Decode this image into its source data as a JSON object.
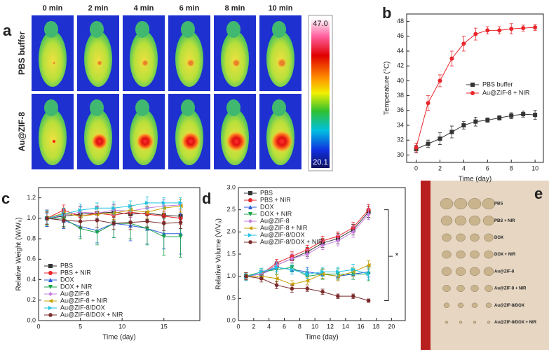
{
  "panel_a": {
    "label": "a",
    "columns": [
      "0 min",
      "2 min",
      "4 min",
      "6 min",
      "8 min",
      "10 min"
    ],
    "rows": [
      "PBS buffer",
      "Au@ZIF-8"
    ],
    "colorbar_max": {
      "value": 47,
      "label": "47.0"
    },
    "colorbar_min": 20.1
  },
  "panel_e": {
    "label": "e",
    "groups": [
      "PBS",
      "PBS + NIR",
      "DOX",
      "DOX + NIR",
      "Au@ZIF-8",
      "Au@ZIF-8 + NIR",
      "Au@ZIF-8/DOX",
      "Au@ZIF-8/DOX + NIR"
    ]
  },
  "chart_data": [
    {
      "type": "line",
      "panel_label": "b",
      "xlabel": "Time (day)",
      "ylabel": "Temperature (°C)",
      "x": [
        0,
        1,
        2,
        3,
        4,
        5,
        6,
        7,
        8,
        9,
        10
      ],
      "xlim": [
        -0.8,
        10.7
      ],
      "xticks": [
        0,
        2,
        4,
        6,
        8,
        10
      ],
      "ylim": [
        29,
        49
      ],
      "yticks": [
        30,
        32,
        34,
        36,
        38,
        40,
        42,
        44,
        46,
        48
      ],
      "legend": "center right",
      "series": [
        {
          "name": "PBS buffer",
          "color": "#333333",
          "marker": "square",
          "values": [
            30.8,
            31.5,
            32.2,
            33.1,
            34.0,
            34.5,
            34.7,
            35.0,
            35.3,
            35.5,
            35.4
          ],
          "errors": [
            0.5,
            0.5,
            0.8,
            0.8,
            0.5,
            0.6,
            0.3,
            0.3,
            0.4,
            0.4,
            0.6
          ]
        },
        {
          "name": "Au@ZIF-8 + NIR",
          "color": "#e8262b",
          "marker": "circle",
          "values": [
            31.0,
            37.0,
            40.0,
            43.0,
            45.0,
            46.3,
            46.8,
            46.8,
            47.0,
            47.1,
            47.2
          ],
          "errors": [
            0.6,
            1.0,
            0.8,
            1.0,
            1.0,
            0.8,
            0.5,
            0.5,
            0.7,
            0.4,
            0.4
          ]
        }
      ]
    },
    {
      "type": "line",
      "panel_label": "c",
      "xlabel": "Time (day)",
      "ylabel": "Relative Weight (W/W₀)",
      "x": [
        1,
        3,
        5,
        7,
        9,
        11,
        13,
        15,
        17
      ],
      "xlim": [
        0,
        19.3
      ],
      "xticks": [
        0,
        5,
        10,
        15
      ],
      "ylim": [
        0,
        1.3
      ],
      "yticks": [
        {
          "value": 0,
          "label": "0.0"
        },
        0.2,
        0.4,
        0.6,
        0.8,
        {
          "value": 1,
          "label": "1.0"
        },
        1.2
      ],
      "legend": "lower left",
      "series": [
        {
          "name": "PBS",
          "color": "#333333",
          "marker": "square",
          "values": [
            1.0,
            1.02,
            1.04,
            1.05,
            1.06,
            1.04,
            1.05,
            1.03,
            1.02
          ],
          "errors": [
            0.08,
            0.06,
            0.07,
            0.06,
            0.08,
            0.07,
            0.06,
            0.07,
            0.06
          ]
        },
        {
          "name": "PBS + NIR",
          "color": "#e8262b",
          "marker": "circle",
          "values": [
            1.0,
            1.08,
            1.02,
            1.05,
            1.03,
            1.06,
            1.04,
            1.02,
            1.0
          ],
          "errors": [
            0.06,
            0.05,
            0.06,
            0.07,
            0.06,
            0.05,
            0.06,
            0.05,
            0.06
          ]
        },
        {
          "name": "DOX",
          "color": "#2a5bd7",
          "marker": "triangle",
          "values": [
            1.0,
            0.98,
            0.92,
            0.88,
            0.95,
            0.93,
            0.9,
            0.85,
            0.85
          ],
          "errors": [
            0.08,
            0.08,
            0.1,
            0.12,
            0.14,
            0.15,
            0.15,
            0.15,
            0.2
          ]
        },
        {
          "name": "DOX + NIR",
          "color": "#1aa34a",
          "marker": "triangle-down",
          "values": [
            1.0,
            1.0,
            0.9,
            0.86,
            0.95,
            0.95,
            0.9,
            0.82,
            0.82
          ],
          "errors": [
            0.07,
            0.08,
            0.1,
            0.12,
            0.14,
            0.15,
            0.16,
            0.18,
            0.2
          ]
        },
        {
          "name": "Au@ZIF-8",
          "color": "#c77fe0",
          "marker": "diamond",
          "values": [
            1.0,
            1.03,
            1.06,
            1.05,
            1.08,
            1.07,
            1.1,
            1.12,
            1.13
          ],
          "errors": [
            0.05,
            0.05,
            0.06,
            0.06,
            0.05,
            0.06,
            0.05,
            0.06,
            0.05
          ]
        },
        {
          "name": "Au@ZIF-8 + NIR",
          "color": "#c8a000",
          "marker": "left",
          "values": [
            1.0,
            1.05,
            1.02,
            1.04,
            1.05,
            1.08,
            1.06,
            1.1,
            1.12
          ],
          "errors": [
            0.06,
            0.05,
            0.06,
            0.05,
            0.06,
            0.05,
            0.06,
            0.05,
            0.06
          ]
        },
        {
          "name": "Au@ZIF-8/DOX",
          "color": "#25c2e0",
          "marker": "right",
          "values": [
            1.0,
            1.04,
            1.08,
            1.1,
            1.1,
            1.12,
            1.15,
            1.15,
            1.15
          ],
          "errors": [
            0.05,
            0.06,
            0.06,
            0.05,
            0.06,
            0.05,
            0.06,
            0.05,
            0.05
          ]
        },
        {
          "name": "Au@ZIF-8/DOX + NIR",
          "color": "#7a2a2a",
          "marker": "hexagon",
          "values": [
            1.0,
            0.98,
            0.97,
            0.98,
            0.95,
            0.96,
            0.97,
            0.95,
            0.96
          ],
          "errors": [
            0.06,
            0.07,
            0.06,
            0.07,
            0.06,
            0.07,
            0.06,
            0.07,
            0.06
          ]
        }
      ]
    },
    {
      "type": "line",
      "panel_label": "d",
      "xlabel": "Time (day)",
      "ylabel": "Relative Volume (V/V₀)",
      "annotation": "*",
      "x": [
        1,
        3,
        5,
        7,
        9,
        11,
        13,
        15,
        17
      ],
      "xlim": [
        0,
        21.8
      ],
      "xticks": [
        0,
        2,
        4,
        6,
        8,
        10,
        12,
        14,
        16,
        18,
        20
      ],
      "ylim": [
        0,
        3
      ],
      "yticks": [
        {
          "value": 0,
          "label": "0.0"
        },
        0.5,
        {
          "value": 1,
          "label": "1.0"
        },
        1.5,
        {
          "value": 2,
          "label": "2.0"
        },
        2.5,
        {
          "value": 3,
          "label": "3.0"
        }
      ],
      "legend": "upper left",
      "series": [
        {
          "name": "PBS",
          "color": "#333333",
          "marker": "square",
          "values": [
            1.0,
            1.05,
            1.25,
            1.4,
            1.55,
            1.75,
            1.85,
            2.05,
            2.45
          ],
          "errors": [
            0.08,
            0.08,
            0.08,
            0.1,
            0.1,
            0.1,
            0.12,
            0.12,
            0.12
          ]
        },
        {
          "name": "PBS + NIR",
          "color": "#e8262b",
          "marker": "circle",
          "values": [
            1.0,
            1.05,
            1.3,
            1.45,
            1.6,
            1.8,
            1.9,
            2.1,
            2.5
          ],
          "errors": [
            0.08,
            0.08,
            0.08,
            0.1,
            0.1,
            0.1,
            0.1,
            0.12,
            0.12
          ]
        },
        {
          "name": "DOX",
          "color": "#2a5bd7",
          "marker": "triangle",
          "values": [
            1.0,
            1.05,
            1.2,
            1.15,
            1.1,
            1.05,
            1.0,
            1.05,
            1.1
          ],
          "errors": [
            0.08,
            0.08,
            0.1,
            0.1,
            0.1,
            0.1,
            0.1,
            0.12,
            0.12
          ]
        },
        {
          "name": "DOX + NIR",
          "color": "#1aa34a",
          "marker": "triangle-down",
          "values": [
            1.0,
            1.1,
            1.15,
            1.2,
            1.0,
            1.05,
            1.05,
            1.05,
            1.05
          ],
          "errors": [
            0.08,
            0.08,
            0.1,
            0.1,
            0.1,
            0.12,
            0.12,
            0.12,
            0.15
          ]
        },
        {
          "name": "Au@ZIF-8",
          "color": "#c77fe0",
          "marker": "diamond",
          "values": [
            1.0,
            1.05,
            1.25,
            1.4,
            1.5,
            1.7,
            1.8,
            2.0,
            2.4
          ],
          "errors": [
            0.08,
            0.08,
            0.08,
            0.1,
            0.1,
            0.1,
            0.12,
            0.12,
            0.12
          ]
        },
        {
          "name": "Au@ZIF-8 + NIR",
          "color": "#c8a000",
          "marker": "left",
          "values": [
            1.0,
            1.0,
            0.95,
            0.82,
            0.9,
            1.05,
            1.0,
            1.1,
            1.25
          ],
          "errors": [
            0.08,
            0.08,
            0.08,
            0.08,
            0.08,
            0.1,
            0.1,
            0.1,
            0.1
          ]
        },
        {
          "name": "Au@ZIF-8/DOX",
          "color": "#25c2e0",
          "marker": "right",
          "values": [
            0.98,
            1.1,
            1.2,
            1.15,
            1.05,
            1.1,
            1.1,
            1.15,
            1.05
          ],
          "errors": [
            0.08,
            0.08,
            0.1,
            0.1,
            0.1,
            0.1,
            0.1,
            0.12,
            0.12
          ]
        },
        {
          "name": "Au@ZIF-8/DOX + NIR",
          "color": "#7a2a2a",
          "marker": "hexagon",
          "values": [
            1.0,
            0.95,
            0.8,
            0.72,
            0.72,
            0.65,
            0.55,
            0.55,
            0.45
          ],
          "errors": [
            0.08,
            0.08,
            0.08,
            0.08,
            0.06,
            0.06,
            0.05,
            0.05,
            0.04
          ]
        }
      ]
    }
  ]
}
